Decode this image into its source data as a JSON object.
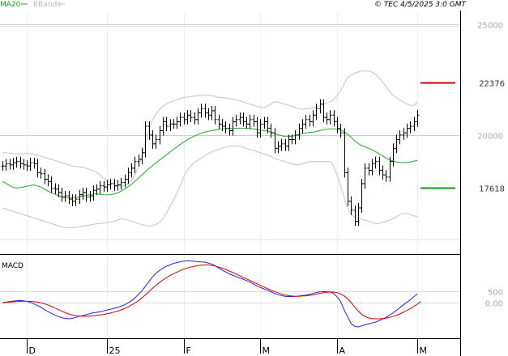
{
  "header": {
    "legend": [
      {
        "label": "MA20",
        "color": "#1aa31a"
      },
      {
        "label": "BBands",
        "color": "#bbbbbb"
      }
    ],
    "copyright": "© TEC 4/5/2025 3:0 GMT"
  },
  "colors": {
    "bars": "#000000",
    "ma20": "#22aa22",
    "bbands": "#c4c4c4",
    "macd": "#2222ee",
    "signal": "#dd0000",
    "resistance": "#cc0000",
    "support": "#119911",
    "axis_text": "#aaaaaa",
    "frame": "#000000"
  },
  "chart_data": [
    {
      "type": "ohlc",
      "name": "price",
      "y_ticks": [
        {
          "value": 25000,
          "label": "25000"
        },
        {
          "value": 20000,
          "label": "20000"
        }
      ],
      "ylim": [
        15200,
        25600
      ],
      "levels": [
        {
          "value": 22376,
          "label": "22376",
          "color": "#cc0000"
        },
        {
          "value": 17618,
          "label": "17618",
          "color": "#119911"
        }
      ],
      "x_labels": [
        {
          "index": 7,
          "label": "D"
        },
        {
          "index": 30,
          "label": "25"
        },
        {
          "index": 52,
          "label": "F"
        },
        {
          "index": 74,
          "label": "M"
        },
        {
          "index": 96,
          "label": "A"
        },
        {
          "index": 119,
          "label": "M"
        }
      ],
      "close": [
        18600,
        18700,
        18650,
        18750,
        18800,
        18700,
        18650,
        18600,
        18750,
        18700,
        18300,
        18250,
        18000,
        17900,
        17600,
        17550,
        17400,
        17200,
        17250,
        17100,
        17000,
        17100,
        17300,
        17400,
        17200,
        17250,
        17500,
        17550,
        17700,
        17650,
        17750,
        17800,
        17700,
        17750,
        17850,
        18000,
        18300,
        18500,
        18800,
        18900,
        19200,
        20400,
        20000,
        19600,
        19800,
        20200,
        20600,
        20400,
        20500,
        20500,
        20600,
        20800,
        20700,
        20900,
        20800,
        20700,
        21000,
        21200,
        21000,
        20900,
        21100,
        20700,
        20500,
        20400,
        20300,
        20200,
        20600,
        20700,
        20800,
        20600,
        20500,
        20700,
        20600,
        20100,
        20500,
        20600,
        20300,
        20100,
        19400,
        19500,
        19600,
        19500,
        19800,
        19800,
        20000,
        20300,
        20500,
        20700,
        20600,
        20900,
        21200,
        21400,
        20800,
        20700,
        20900,
        20600,
        20300,
        20100,
        18300,
        17000,
        16600,
        16100,
        16700,
        17800,
        18500,
        18400,
        18700,
        18800,
        18400,
        18200,
        18100,
        18800,
        19400,
        19800,
        20000,
        20100,
        20300,
        20400,
        20600,
        20900
      ],
      "ma20": [
        17900,
        17820,
        17720,
        17640,
        17600,
        17620,
        17650,
        17680,
        17720,
        17740,
        17700,
        17650,
        17550,
        17470,
        17400,
        17330,
        17260,
        17200,
        17180,
        17160,
        17160,
        17170,
        17200,
        17240,
        17270,
        17300,
        17330,
        17340,
        17320,
        17300,
        17290,
        17300,
        17330,
        17380,
        17460,
        17550,
        17650,
        17770,
        17910,
        18050,
        18190,
        18340,
        18480,
        18610,
        18740,
        18860,
        18980,
        19100,
        19220,
        19340,
        19460,
        19580,
        19680,
        19780,
        19870,
        19950,
        20020,
        20080,
        20130,
        20170,
        20200,
        20230,
        20260,
        20280,
        20300,
        20300,
        20300,
        20310,
        20320,
        20310,
        20300,
        20290,
        20280,
        20250,
        20220,
        20200,
        20180,
        20150,
        20080,
        20020,
        19970,
        19940,
        19930,
        19950,
        19980,
        20020,
        20060,
        20100,
        20120,
        20130,
        20160,
        20200,
        20240,
        20260,
        20280,
        20280,
        20260,
        20230,
        20150,
        20040,
        19900,
        19750,
        19620,
        19530,
        19470,
        19400,
        19330,
        19250,
        19160,
        19060,
        18960,
        18880,
        18820,
        18780,
        18760,
        18750,
        18760,
        18780,
        18810,
        18860
      ],
      "bb_upper": [
        19200,
        19200,
        19180,
        19160,
        19150,
        19140,
        19150,
        19160,
        19160,
        19140,
        19100,
        19050,
        19000,
        18950,
        18900,
        18850,
        18800,
        18750,
        18700,
        18650,
        18600,
        18580,
        18560,
        18540,
        18500,
        18450,
        18380,
        18300,
        18200,
        18050,
        17950,
        17850,
        17780,
        17720,
        17680,
        17700,
        17800,
        17950,
        18200,
        18550,
        19050,
        19600,
        20200,
        20650,
        20950,
        21150,
        21300,
        21400,
        21480,
        21550,
        21600,
        21650,
        21700,
        21720,
        21740,
        21760,
        21780,
        21800,
        21800,
        21800,
        21780,
        21750,
        21700,
        21700,
        21680,
        21650,
        21630,
        21600,
        21550,
        21500,
        21450,
        21400,
        21350,
        21300,
        21250,
        21250,
        21300,
        21400,
        21500,
        21500,
        21450,
        21400,
        21350,
        21300,
        21250,
        21200,
        21180,
        21180,
        21200,
        21230,
        21280,
        21340,
        21400,
        21450,
        21500,
        21600,
        21800,
        22000,
        22300,
        22600,
        22700,
        22800,
        22850,
        22900,
        22900,
        22900,
        22850,
        22750,
        22600,
        22400,
        22200,
        22000,
        21800,
        21700,
        21600,
        21500,
        21400,
        21350,
        21350,
        21500
      ],
      "bb_lower": [
        16700,
        16650,
        16600,
        16550,
        16500,
        16450,
        16400,
        16350,
        16300,
        16250,
        16200,
        16150,
        16100,
        16050,
        16000,
        15950,
        15900,
        15850,
        15820,
        15800,
        15800,
        15820,
        15850,
        15880,
        15900,
        15930,
        15960,
        15980,
        16000,
        16020,
        16040,
        16060,
        16100,
        16150,
        16200,
        16200,
        16150,
        16100,
        16050,
        16000,
        15950,
        15900,
        15880,
        15900,
        15950,
        16050,
        16200,
        16450,
        16750,
        17050,
        17350,
        17700,
        18100,
        18400,
        18600,
        18750,
        18850,
        18950,
        19050,
        19150,
        19250,
        19300,
        19350,
        19400,
        19450,
        19500,
        19500,
        19500,
        19500,
        19450,
        19400,
        19350,
        19300,
        19250,
        19200,
        19150,
        19100,
        19050,
        18950,
        18900,
        18850,
        18800,
        18750,
        18700,
        18650,
        18650,
        18700,
        18750,
        18800,
        18800,
        18800,
        18800,
        18800,
        18800,
        18800,
        18600,
        18200,
        17700,
        17200,
        16700,
        16400,
        16300,
        16250,
        16200,
        16150,
        16100,
        16050,
        16000,
        16000,
        16050,
        16100,
        16150,
        16200,
        16300,
        16400,
        16450,
        16450,
        16400,
        16350,
        16300
      ]
    },
    {
      "type": "line",
      "name": "MACD",
      "title": "MACD",
      "y_ticks": [
        {
          "value": 500,
          "label": "500"
        },
        {
          "value": 0,
          "label": "0.00"
        }
      ],
      "ylim": [
        -1500,
        1950
      ],
      "series": [
        {
          "name": "macd",
          "values": [
            0,
            20,
            40,
            60,
            80,
            90,
            80,
            50,
            10,
            -50,
            -120,
            -200,
            -300,
            -380,
            -460,
            -530,
            -600,
            -650,
            -680,
            -700,
            -680,
            -640,
            -600,
            -560,
            -520,
            -480,
            -440,
            -420,
            -400,
            -360,
            -320,
            -290,
            -250,
            -210,
            -160,
            -100,
            -20,
            80,
            200,
            350,
            500,
            700,
            900,
            1100,
            1250,
            1380,
            1480,
            1560,
            1620,
            1680,
            1720,
            1760,
            1780,
            1800,
            1790,
            1780,
            1760,
            1750,
            1740,
            1700,
            1660,
            1580,
            1490,
            1400,
            1320,
            1240,
            1180,
            1120,
            1060,
            1010,
            950,
            880,
            800,
            720,
            650,
            590,
            530,
            470,
            400,
            340,
            300,
            270,
            260,
            260,
            270,
            280,
            300,
            320,
            350,
            390,
            430,
            460,
            470,
            470,
            460,
            400,
            250,
            50,
            -300,
            -600,
            -900,
            -1020,
            -1050,
            -1000,
            -960,
            -920,
            -880,
            -840,
            -780,
            -720,
            -640,
            -550,
            -450,
            -340,
            -220,
            -100,
            10,
            120,
            250,
            380
          ]
        },
        {
          "name": "signal",
          "values": [
            0,
            10,
            20,
            30,
            40,
            50,
            55,
            55,
            50,
            40,
            20,
            -10,
            -50,
            -100,
            -160,
            -230,
            -300,
            -370,
            -430,
            -490,
            -530,
            -560,
            -580,
            -590,
            -590,
            -580,
            -570,
            -550,
            -530,
            -510,
            -480,
            -450,
            -410,
            -370,
            -320,
            -260,
            -190,
            -110,
            -20,
            80,
            200,
            330,
            470,
            610,
            740,
            860,
            970,
            1070,
            1160,
            1240,
            1310,
            1380,
            1440,
            1490,
            1530,
            1560,
            1590,
            1610,
            1620,
            1620,
            1600,
            1570,
            1530,
            1480,
            1420,
            1360,
            1300,
            1230,
            1160,
            1090,
            1020,
            950,
            880,
            810,
            740,
            670,
            600,
            540,
            480,
            420,
            370,
            330,
            300,
            280,
            270,
            270,
            280,
            290,
            310,
            330,
            360,
            390,
            420,
            440,
            450,
            450,
            430,
            380,
            290,
            170,
            0,
            -180,
            -360,
            -500,
            -600,
            -660,
            -690,
            -700,
            -700,
            -690,
            -670,
            -640,
            -600,
            -550,
            -490,
            -420,
            -340,
            -260,
            -170,
            -70,
            40
          ]
        }
      ]
    }
  ]
}
